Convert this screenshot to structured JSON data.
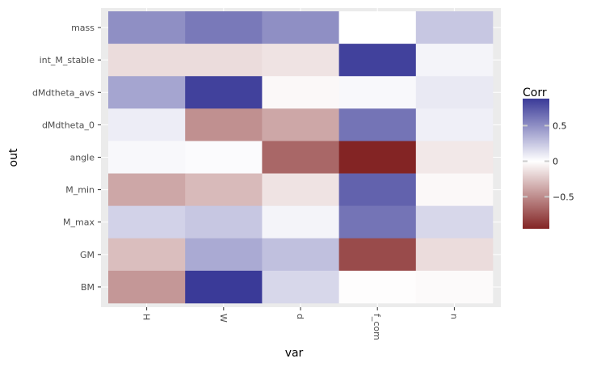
{
  "chart_data": {
    "type": "heatmap",
    "xlabel": "var",
    "ylabel": "out",
    "x_categories": [
      "H",
      "W",
      "d",
      "f_com",
      "n"
    ],
    "y_categories": [
      "mass",
      "int_M_stable",
      "dMdtheta_avs",
      "dMdtheta_0",
      "angle",
      "M_min",
      "M_max",
      "GM",
      "BM"
    ],
    "values": [
      [
        0.5,
        0.6,
        0.5,
        0.0,
        0.25
      ],
      [
        -0.15,
        -0.15,
        -0.12,
        0.85,
        0.05
      ],
      [
        0.4,
        0.85,
        -0.03,
        0.03,
        0.1
      ],
      [
        0.08,
        -0.48,
        -0.38,
        0.62,
        0.07
      ],
      [
        0.03,
        0.02,
        -0.66,
        -0.95,
        -0.1
      ],
      [
        -0.38,
        -0.3,
        -0.12,
        0.7,
        -0.03
      ],
      [
        0.2,
        0.25,
        0.05,
        0.62,
        0.18
      ],
      [
        -0.28,
        0.38,
        0.28,
        -0.78,
        -0.15
      ],
      [
        -0.45,
        0.88,
        0.18,
        -0.01,
        -0.02
      ]
    ],
    "legend": {
      "title": "Corr",
      "breaks": [
        0.5,
        0,
        -0.5
      ],
      "break_labels": [
        "0.5",
        "0",
        "−0.5"
      ],
      "range": [
        -0.95,
        0.88
      ]
    },
    "colors": {
      "low": "#832424",
      "mid": "#ffffff",
      "high": "#3a3a98",
      "panel_background": "#ebebeb",
      "gridline": "#ffffff"
    },
    "grid": true,
    "legend_position": "right"
  }
}
